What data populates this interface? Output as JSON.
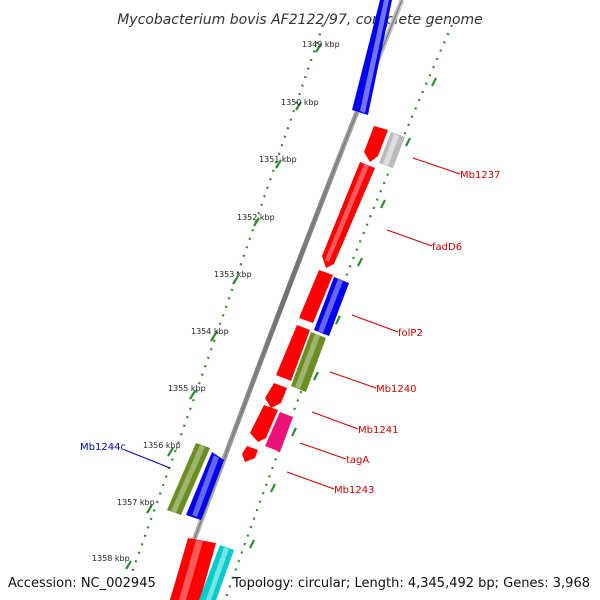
{
  "title": "Mycobacterium bovis AF2122/97, complete genome",
  "footer": {
    "accession": "Accession: NC_002945",
    "topology": "Topology: circular; Length: 4,345,492 bp; Genes: 3,968"
  },
  "colors": {
    "backbone": "#888888",
    "tick_ring": "#2e8b2e",
    "forward_label": "#cc0000",
    "reverse_label": "#0000bb",
    "gene_red": "#ff0000",
    "gene_blue": "#0000ee",
    "gene_olive": "#6b8e23",
    "gene_grey": "#bbbbbb",
    "gene_magenta": "#ee1177",
    "gene_cyan": "#00cccc"
  },
  "ticks": [
    {
      "label": "1349 kbp"
    },
    {
      "label": "1350 kbp"
    },
    {
      "label": "1351 kbp"
    },
    {
      "label": "1352 kbp"
    },
    {
      "label": "1353 kbp"
    },
    {
      "label": "1354 kbp"
    },
    {
      "label": "1355 kbp"
    },
    {
      "label": "1356 kbp"
    },
    {
      "label": "1357 kbp"
    },
    {
      "label": "1358 kbp"
    }
  ],
  "gene_labels": [
    {
      "name": "Mb1237",
      "strand": "forward"
    },
    {
      "name": "fadD6",
      "strand": "forward"
    },
    {
      "name": "folP2",
      "strand": "forward"
    },
    {
      "name": "Mb1240",
      "strand": "forward"
    },
    {
      "name": "Mb1241",
      "strand": "forward"
    },
    {
      "name": "tagA",
      "strand": "forward"
    },
    {
      "name": "Mb1243",
      "strand": "forward"
    },
    {
      "name": "Mb1244c",
      "strand": "reverse"
    }
  ]
}
